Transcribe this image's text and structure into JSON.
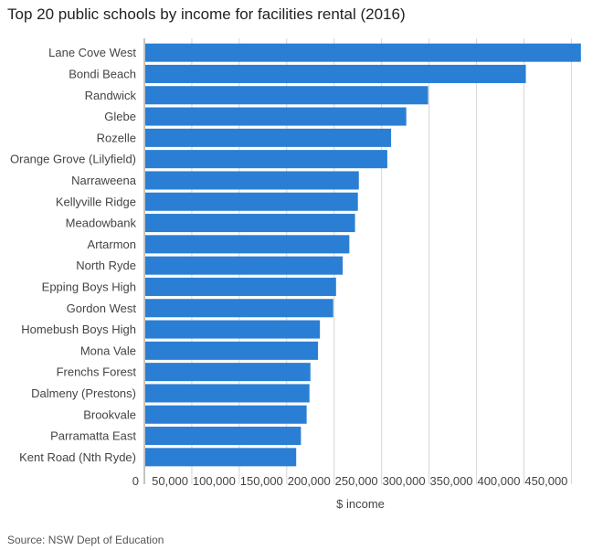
{
  "chart_data": {
    "type": "bar",
    "orientation": "horizontal",
    "title": "Top 20 public schools by income for facilities rental (2016)",
    "xlabel": "$ income",
    "ylabel": "",
    "xlim": [
      0,
      465000
    ],
    "x_ticks": [
      0,
      50000,
      100000,
      150000,
      200000,
      250000,
      300000,
      350000,
      400000,
      450000
    ],
    "x_tick_labels": [
      "0",
      "50,000",
      "100,000",
      "150,000",
      "200,000",
      "250,000",
      "300,000",
      "350,000",
      "400,000",
      "450,000"
    ],
    "grid": true,
    "bar_color": "#2a7fd4",
    "categories": [
      "Lane Cove West",
      "Bondi Beach",
      "Randwick",
      "Glebe",
      "Rozelle",
      "Orange Grove (Lilyfield)",
      "Narraweena",
      "Kellyville Ridge",
      "Meadowbank",
      "Artarmon",
      "North Ryde",
      "Epping Boys High",
      "Gordon West",
      "Homebush Boys High",
      "Mona Vale",
      "Frenchs Forest",
      "Dalmeny (Prestons)",
      "Brookvale",
      "Parramatta East",
      "Kent Road (Nth Ryde)"
    ],
    "values": [
      460000,
      402000,
      299000,
      276000,
      260000,
      256000,
      226000,
      225000,
      222000,
      216000,
      209000,
      202000,
      199000,
      185000,
      183000,
      175000,
      174000,
      171000,
      165000,
      160000
    ]
  },
  "source": "Source: NSW Dept of Education"
}
